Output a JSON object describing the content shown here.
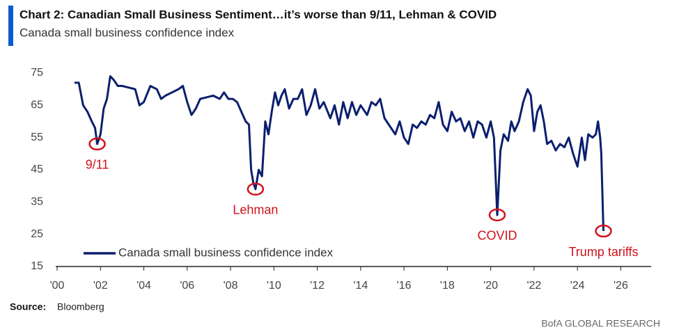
{
  "chart_data": {
    "type": "line",
    "title": "Chart 2: Canadian Small Business Sentiment…it’s worse than 9/11, Lehman & COVID",
    "subtitle": "Canada small business confidence index",
    "source_label": "Source:",
    "source": "Bloomberg",
    "footer": "BofA GLOBAL RESEARCH",
    "legend": "lower left",
    "xlim": [
      2000,
      2027.4
    ],
    "xticks": [
      {
        "value": 2000,
        "label": "'00"
      },
      {
        "value": 2002,
        "label": "'02"
      },
      {
        "value": 2004,
        "label": "'04"
      },
      {
        "value": 2006,
        "label": "'06"
      },
      {
        "value": 2008,
        "label": "'08"
      },
      {
        "value": 2010,
        "label": "'10"
      },
      {
        "value": 2012,
        "label": "'12"
      },
      {
        "value": 2014,
        "label": "'14"
      },
      {
        "value": 2016,
        "label": "'16"
      },
      {
        "value": 2018,
        "label": "'18"
      },
      {
        "value": 2020,
        "label": "'20"
      },
      {
        "value": 2022,
        "label": "'22"
      },
      {
        "value": 2024,
        "label": "'24"
      },
      {
        "value": 2026,
        "label": "'26"
      }
    ],
    "ylim": [
      15,
      75
    ],
    "yticks": [
      15,
      25,
      35,
      45,
      55,
      65,
      75
    ],
    "annotations": [
      {
        "text": "9/11",
        "x": 2001.85,
        "y": 53
      },
      {
        "text": "Lehman",
        "x": 2009.15,
        "y": 39
      },
      {
        "text": "COVID",
        "x": 2020.3,
        "y": 31
      },
      {
        "text": "Trump tariffs",
        "x": 2025.2,
        "y": 26
      }
    ],
    "x": [
      2000.8,
      2001.0,
      2001.2,
      2001.4,
      2001.6,
      2001.75,
      2001.85,
      2002.0,
      2002.15,
      2002.3,
      2002.45,
      2002.6,
      2002.8,
      2003.0,
      2003.3,
      2003.6,
      2003.8,
      2004.0,
      2004.3,
      2004.6,
      2004.8,
      2005.0,
      2005.3,
      2005.6,
      2005.8,
      2006.0,
      2006.2,
      2006.4,
      2006.6,
      2006.9,
      2007.2,
      2007.5,
      2007.7,
      2007.9,
      2008.1,
      2008.3,
      2008.5,
      2008.7,
      2008.85,
      2008.95,
      2009.05,
      2009.15,
      2009.3,
      2009.45,
      2009.6,
      2009.75,
      2009.9,
      2010.05,
      2010.2,
      2010.35,
      2010.5,
      2010.7,
      2010.9,
      2011.1,
      2011.3,
      2011.5,
      2011.7,
      2011.9,
      2012.1,
      2012.3,
      2012.6,
      2012.8,
      2013.0,
      2013.2,
      2013.4,
      2013.6,
      2013.8,
      2014.0,
      2014.3,
      2014.5,
      2014.7,
      2014.9,
      2015.1,
      2015.3,
      2015.6,
      2015.8,
      2016.0,
      2016.2,
      2016.4,
      2016.6,
      2016.8,
      2017.0,
      2017.2,
      2017.4,
      2017.6,
      2017.8,
      2018.0,
      2018.2,
      2018.4,
      2018.6,
      2018.8,
      2019.0,
      2019.2,
      2019.4,
      2019.6,
      2019.8,
      2020.0,
      2020.15,
      2020.3,
      2020.45,
      2020.6,
      2020.8,
      2020.95,
      2021.1,
      2021.3,
      2021.5,
      2021.7,
      2021.85,
      2022.0,
      2022.15,
      2022.3,
      2022.45,
      2022.6,
      2022.8,
      2023.0,
      2023.2,
      2023.4,
      2023.6,
      2023.8,
      2024.0,
      2024.2,
      2024.35,
      2024.5,
      2024.7,
      2024.85,
      2024.95,
      2025.05,
      2025.1,
      2025.2
    ],
    "series": [
      {
        "name": "Canada small business confidence index",
        "color": "#0b1f6e",
        "values": [
          72,
          72,
          65,
          63,
          60,
          58,
          53,
          56,
          64,
          67,
          74,
          73,
          71,
          71,
          70.5,
          70,
          65,
          66,
          71,
          70,
          67,
          68,
          69,
          70,
          71,
          66,
          62,
          64,
          67,
          67.5,
          68,
          67,
          69,
          67,
          67,
          66,
          63,
          60,
          59,
          45,
          41,
          39,
          45,
          43,
          60,
          56,
          63,
          69,
          65,
          68,
          70,
          64,
          67,
          67,
          70,
          62,
          65,
          70,
          64,
          66,
          61,
          65,
          59,
          66,
          61,
          66,
          62,
          65,
          62,
          66,
          65,
          67,
          61,
          59,
          56,
          60,
          55,
          53,
          59,
          58,
          60,
          59,
          62,
          61,
          66,
          59,
          57,
          63,
          60,
          61,
          57,
          60,
          55,
          60,
          59,
          55,
          60,
          55,
          31,
          51,
          56,
          54,
          60,
          57,
          60,
          66,
          70,
          68,
          57,
          63,
          65,
          60,
          53,
          54,
          51,
          53,
          52,
          55,
          50,
          46,
          55,
          48,
          56,
          55,
          56,
          60,
          55,
          50,
          26
        ]
      }
    ]
  }
}
